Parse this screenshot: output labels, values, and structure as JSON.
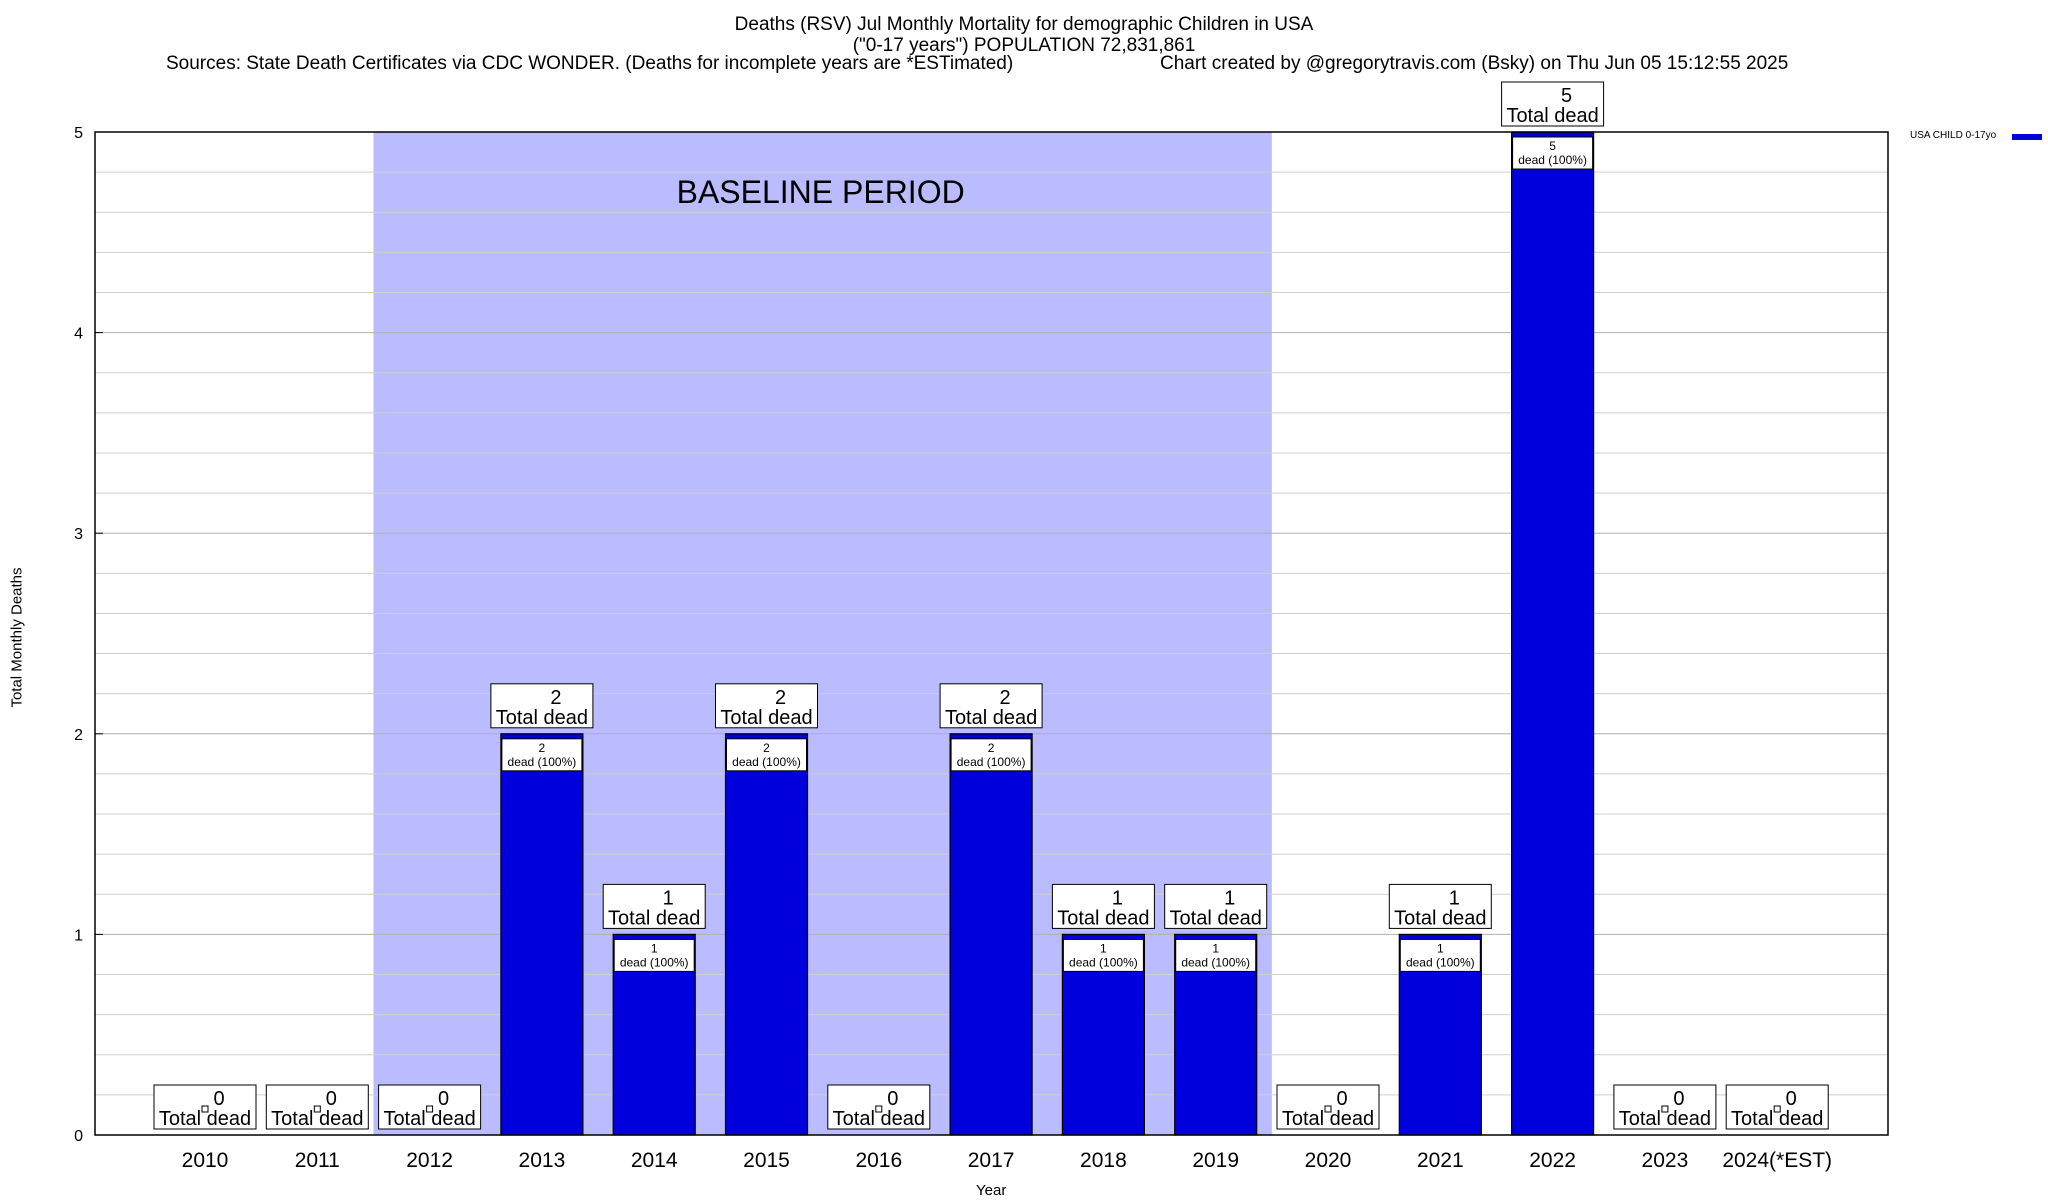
{
  "title": {
    "line1": "Deaths (RSV) Jul Monthly Mortality for demographic Children in USA",
    "line2": "(\"0-17 years\") POPULATION 72,831,861",
    "sources": "Sources: State Death Certificates via CDC WONDER. (Deaths for incomplete years are *ESTimated)",
    "credit": "Chart created by @gregorytravis.com (Bsky) on Thu Jun 05 15:12:55 2025"
  },
  "colors": {
    "bar": "#0000dd",
    "baseline": "#bbbbff"
  },
  "chart_data": {
    "type": "bar",
    "title": "Deaths (RSV) Jul Monthly Mortality for demographic Children in USA",
    "xlabel": "Year",
    "ylabel": "Total Monthly Deaths",
    "ylim": [
      0,
      5
    ],
    "yticks": [
      0,
      1,
      2,
      3,
      4,
      5
    ],
    "grid": true,
    "legend_position": "top-right",
    "categories": [
      "2010",
      "2011",
      "2012",
      "2013",
      "2014",
      "2015",
      "2016",
      "2017",
      "2018",
      "2019",
      "2020",
      "2021",
      "2022",
      "2023",
      "2024(*EST)"
    ],
    "series": [
      {
        "name": "USA CHILD 0-17yo",
        "values": [
          0,
          0,
          0,
          2,
          1,
          2,
          0,
          2,
          1,
          1,
          0,
          1,
          5,
          0,
          0
        ]
      }
    ],
    "total_label": "Total dead",
    "inner_label_suffix": "dead (100%)",
    "baseline_period": {
      "label": "BASELINE PERIOD",
      "from": "2012",
      "to": "2019"
    }
  }
}
